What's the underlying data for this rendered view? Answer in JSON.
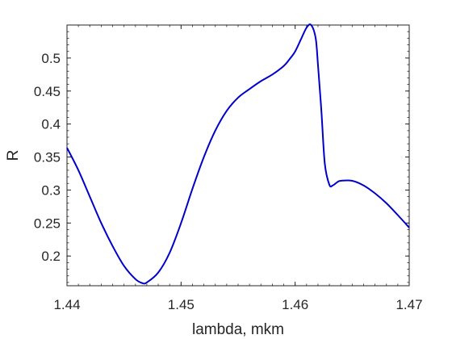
{
  "chart_data": {
    "type": "line",
    "title": "",
    "xlabel": "lambda, mkm",
    "ylabel": "R",
    "xlim": [
      1.44,
      1.47
    ],
    "ylim": [
      0.155,
      0.55
    ],
    "xticks": [
      1.44,
      1.45,
      1.46,
      1.47
    ],
    "xtick_labels": [
      "1.44",
      "1.45",
      "1.46",
      "1.47"
    ],
    "yticks": [
      0.2,
      0.25,
      0.3,
      0.35,
      0.4,
      0.45,
      0.5
    ],
    "ytick_labels": [
      "0.2",
      "0.25",
      "0.3",
      "0.35",
      "0.4",
      "0.45",
      "0.5"
    ],
    "grid": false,
    "line_color": "#0000cc",
    "series": [
      {
        "x": [
          1.44,
          1.441,
          1.442,
          1.443,
          1.444,
          1.445,
          1.446,
          1.4466,
          1.447,
          1.448,
          1.449,
          1.45,
          1.451,
          1.452,
          1.453,
          1.454,
          1.455,
          1.456,
          1.457,
          1.458,
          1.459,
          1.4595,
          1.46,
          1.4605,
          1.461,
          1.4614,
          1.4618,
          1.462,
          1.4623,
          1.4626,
          1.463,
          1.4633,
          1.4637,
          1.464,
          1.465,
          1.466,
          1.467,
          1.468,
          1.469,
          1.47
        ],
        "y": [
          0.364,
          0.33,
          0.29,
          0.25,
          0.215,
          0.185,
          0.165,
          0.159,
          0.16,
          0.175,
          0.205,
          0.25,
          0.302,
          0.35,
          0.39,
          0.42,
          0.44,
          0.453,
          0.465,
          0.475,
          0.488,
          0.498,
          0.51,
          0.528,
          0.546,
          0.55,
          0.53,
          0.49,
          0.42,
          0.34,
          0.308,
          0.307,
          0.312,
          0.314,
          0.314,
          0.307,
          0.295,
          0.28,
          0.262,
          0.243
        ]
      }
    ]
  }
}
